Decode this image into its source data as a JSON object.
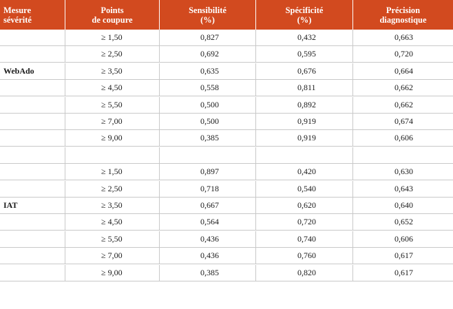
{
  "header": {
    "col0": [
      "Mesure",
      "sévérité"
    ],
    "col1": [
      "Points",
      "de coupure"
    ],
    "col2": [
      "Sensibilité",
      "(%)"
    ],
    "col3": [
      "Spécificité",
      "(%)"
    ],
    "col4": [
      "Précision",
      "diagnostique"
    ]
  },
  "rows": [
    {
      "measure": "",
      "cut": "≥ 1,50",
      "sens": "0,827",
      "spec": "0,432",
      "prec": "0,663"
    },
    {
      "measure": "",
      "cut": "≥ 2,50",
      "sens": "0,692",
      "spec": "0,595",
      "prec": "0,720"
    },
    {
      "measure": "WebAdo",
      "cut": "≥ 3,50",
      "sens": "0,635",
      "spec": "0,676",
      "prec": "0,664"
    },
    {
      "measure": "",
      "cut": "≥ 4,50",
      "sens": "0,558",
      "spec": "0,811",
      "prec": "0,662"
    },
    {
      "measure": "",
      "cut": "≥ 5,50",
      "sens": "0,500",
      "spec": "0,892",
      "prec": "0,662"
    },
    {
      "measure": "",
      "cut": "≥ 7,00",
      "sens": "0,500",
      "spec": "0,919",
      "prec": "0,674"
    },
    {
      "measure": "",
      "cut": "≥ 9,00",
      "sens": "0,385",
      "spec": "0,919",
      "prec": "0,606"
    },
    {
      "measure": "",
      "cut": "",
      "sens": "",
      "spec": "",
      "prec": ""
    },
    {
      "measure": "",
      "cut": "≥ 1,50",
      "sens": "0,897",
      "spec": "0,420",
      "prec": "0,630"
    },
    {
      "measure": "",
      "cut": "≥ 2,50",
      "sens": "0,718",
      "spec": "0,540",
      "prec": "0,643"
    },
    {
      "measure": "IAT",
      "cut": "≥ 3,50",
      "sens": "0,667",
      "spec": "0,620",
      "prec": "0,640"
    },
    {
      "measure": "",
      "cut": "≥ 4,50",
      "sens": "0,564",
      "spec": "0,720",
      "prec": "0,652"
    },
    {
      "measure": "",
      "cut": "≥ 5,50",
      "sens": "0,436",
      "spec": "0,740",
      "prec": "0,606"
    },
    {
      "measure": "",
      "cut": "≥ 7,00",
      "sens": "0,436",
      "spec": "0,760",
      "prec": "0,617"
    },
    {
      "measure": "",
      "cut": "≥ 9,00",
      "sens": "0,385",
      "spec": "0,820",
      "prec": "0,617"
    }
  ],
  "colors": {
    "header_bg": "#d24a1f",
    "header_text": "#ffffff",
    "rule": "#c8c8c8"
  }
}
